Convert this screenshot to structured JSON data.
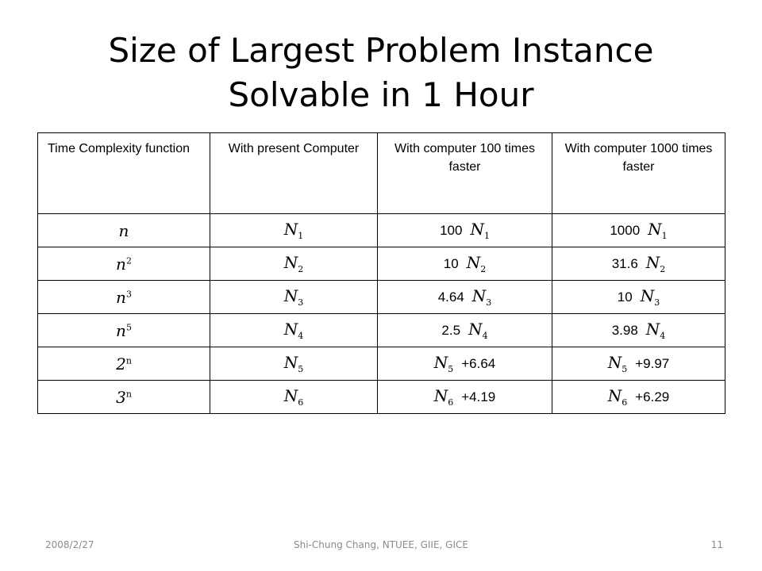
{
  "slide": {
    "title_line1": "Size of Largest Problem Instance",
    "title_line2": "Solvable in 1 Hour"
  },
  "table": {
    "headers": {
      "col1": "Time Complexity function",
      "col2": "With present Computer",
      "col3": "With computer 100 times faster",
      "col4": "With computer 1000 times faster"
    },
    "rows": [
      {
        "fn_base": "n",
        "fn_exp": "",
        "present_var": "N",
        "present_sub": "1",
        "c100_pre": "100",
        "c100_var": "N",
        "c100_sub": "1",
        "c100_post": "",
        "c1000_pre": "1000",
        "c1000_var": "N",
        "c1000_sub": "1",
        "c1000_post": ""
      },
      {
        "fn_base": "n",
        "fn_exp": "2",
        "present_var": "N",
        "present_sub": "2",
        "c100_pre": "10",
        "c100_var": "N",
        "c100_sub": "2",
        "c100_post": "",
        "c1000_pre": "31.6",
        "c1000_var": "N",
        "c1000_sub": "2",
        "c1000_post": ""
      },
      {
        "fn_base": "n",
        "fn_exp": "3",
        "present_var": "N",
        "present_sub": "3",
        "c100_pre": "4.64",
        "c100_var": "N",
        "c100_sub": "3",
        "c100_post": "",
        "c1000_pre": "10",
        "c1000_var": "N",
        "c1000_sub": "3",
        "c1000_post": ""
      },
      {
        "fn_base": "n",
        "fn_exp": "5",
        "present_var": "N",
        "present_sub": "4",
        "c100_pre": "2.5",
        "c100_var": "N",
        "c100_sub": "4",
        "c100_post": "",
        "c1000_pre": "3.98",
        "c1000_var": "N",
        "c1000_sub": "4",
        "c1000_post": ""
      },
      {
        "fn_base": "2",
        "fn_exp": "n",
        "present_var": "N",
        "present_sub": "5",
        "c100_pre": "",
        "c100_var": "N",
        "c100_sub": "5",
        "c100_post": "+6.64",
        "c1000_pre": "",
        "c1000_var": "N",
        "c1000_sub": "5",
        "c1000_post": "+9.97"
      },
      {
        "fn_base": "3",
        "fn_exp": "n",
        "present_var": "N",
        "present_sub": "6",
        "c100_pre": "",
        "c100_var": "N",
        "c100_sub": "6",
        "c100_post": "+4.19",
        "c1000_pre": "",
        "c1000_var": "N",
        "c1000_sub": "6",
        "c1000_post": "+6.29"
      }
    ]
  },
  "footer": {
    "date": "2008/2/27",
    "author": "Shi-Chung Chang, NTUEE, GIIE, GICE",
    "page_number": "11"
  },
  "colors": {
    "footer_text": "#8b8b8b",
    "border": "#000000"
  }
}
